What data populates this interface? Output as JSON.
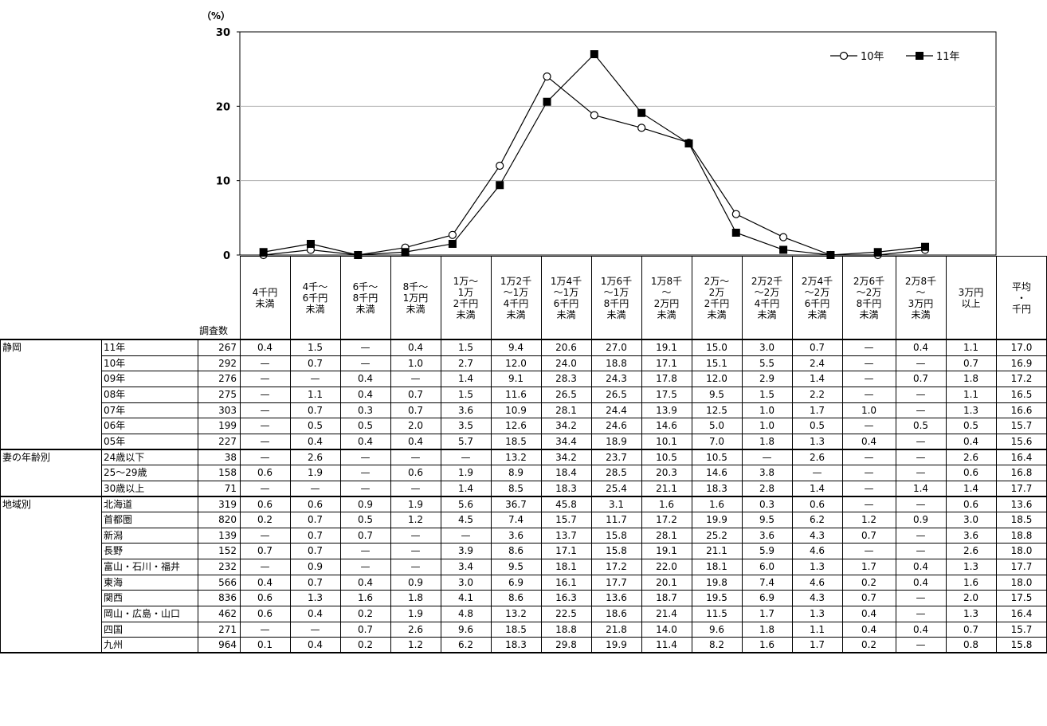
{
  "chart_data": {
    "type": "line",
    "unit_label": "（%）",
    "yticks": [
      0,
      10,
      20,
      30
    ],
    "ylim": [
      0,
      30
    ],
    "grid": true,
    "legend_position": "top-right",
    "categories": [
      "4千円未満",
      "4千～6千円未満",
      "6千～8千円未満",
      "8千～1万円未満",
      "1万～1万2千円未満",
      "1万2千～1万4千円未満",
      "1万4千～1万6千円未満",
      "1万6千～1万8千円未満",
      "1万8千～2万円未満",
      "2万～2万2千円未満",
      "2万2千～2万4千円未満",
      "2万4千～2万6千円未満",
      "2万6千～2万8千円未満",
      "2万8千～3万円未満",
      "3万円以上"
    ],
    "series": [
      {
        "name": "10年",
        "marker": "open-circle",
        "values": [
          0,
          0.7,
          0,
          1.0,
          2.7,
          12.0,
          24.0,
          18.8,
          17.1,
          15.1,
          5.5,
          2.4,
          0,
          0,
          0.7
        ]
      },
      {
        "name": "11年",
        "marker": "filled-square",
        "values": [
          0.4,
          1.5,
          0,
          0.4,
          1.5,
          9.4,
          20.6,
          27.0,
          19.1,
          15.0,
          3.0,
          0.7,
          0,
          0.4,
          1.1
        ]
      }
    ]
  },
  "table": {
    "count_header": "調査数",
    "col_headers": [
      [
        "4千円",
        "未満"
      ],
      [
        "4千～",
        "6千円",
        "未満"
      ],
      [
        "6千～",
        "8千円",
        "未満"
      ],
      [
        "8千～",
        "1万円",
        "未満"
      ],
      [
        "1万～",
        "1万",
        "2千円",
        "未満"
      ],
      [
        "1万2千",
        "～1万",
        "4千円",
        "未満"
      ],
      [
        "1万4千",
        "～1万",
        "6千円",
        "未満"
      ],
      [
        "1万6千",
        "～1万",
        "8千円",
        "未満"
      ],
      [
        "1万8千",
        "～",
        "2万円",
        "未満"
      ],
      [
        "2万～",
        "2万",
        "2千円",
        "未満"
      ],
      [
        "2万2千",
        "～2万",
        "4千円",
        "未満"
      ],
      [
        "2万4千",
        "～2万",
        "6千円",
        "未満"
      ],
      [
        "2万6千",
        "～2万",
        "8千円",
        "未満"
      ],
      [
        "2万8千",
        "～",
        "3万円",
        "未満"
      ],
      [
        "3万円",
        "以上"
      ],
      [
        "平均",
        "・",
        "千円"
      ]
    ],
    "groups": [
      {
        "name": "静岡",
        "rows": [
          {
            "label": "11年",
            "count": "267",
            "vals": [
              "0.4",
              "1.5",
              "—",
              "0.4",
              "1.5",
              "9.4",
              "20.6",
              "27.0",
              "19.1",
              "15.0",
              "3.0",
              "0.7",
              "—",
              "0.4",
              "1.1",
              "17.0"
            ]
          },
          {
            "label": "10年",
            "count": "292",
            "vals": [
              "—",
              "0.7",
              "—",
              "1.0",
              "2.7",
              "12.0",
              "24.0",
              "18.8",
              "17.1",
              "15.1",
              "5.5",
              "2.4",
              "—",
              "—",
              "0.7",
              "16.9"
            ]
          },
          {
            "label": "09年",
            "count": "276",
            "vals": [
              "—",
              "—",
              "0.4",
              "—",
              "1.4",
              "9.1",
              "28.3",
              "24.3",
              "17.8",
              "12.0",
              "2.9",
              "1.4",
              "—",
              "0.7",
              "1.8",
              "17.2"
            ]
          },
          {
            "label": "08年",
            "count": "275",
            "vals": [
              "—",
              "1.1",
              "0.4",
              "0.7",
              "1.5",
              "11.6",
              "26.5",
              "26.5",
              "17.5",
              "9.5",
              "1.5",
              "2.2",
              "—",
              "—",
              "1.1",
              "16.5"
            ]
          },
          {
            "label": "07年",
            "count": "303",
            "vals": [
              "—",
              "0.7",
              "0.3",
              "0.7",
              "3.6",
              "10.9",
              "28.1",
              "24.4",
              "13.9",
              "12.5",
              "1.0",
              "1.7",
              "1.0",
              "—",
              "1.3",
              "16.6"
            ]
          },
          {
            "label": "06年",
            "count": "199",
            "vals": [
              "—",
              "0.5",
              "0.5",
              "2.0",
              "3.5",
              "12.6",
              "34.2",
              "24.6",
              "14.6",
              "5.0",
              "1.0",
              "0.5",
              "—",
              "0.5",
              "0.5",
              "15.7"
            ]
          },
          {
            "label": "05年",
            "count": "227",
            "vals": [
              "—",
              "0.4",
              "0.4",
              "0.4",
              "5.7",
              "18.5",
              "34.4",
              "18.9",
              "10.1",
              "7.0",
              "1.8",
              "1.3",
              "0.4",
              "—",
              "0.4",
              "15.6"
            ]
          }
        ]
      },
      {
        "name": "妻の年齢別",
        "rows": [
          {
            "label": "24歳以下",
            "count": "38",
            "vals": [
              "—",
              "2.6",
              "—",
              "—",
              "—",
              "13.2",
              "34.2",
              "23.7",
              "10.5",
              "10.5",
              "—",
              "2.6",
              "—",
              "—",
              "2.6",
              "16.4"
            ]
          },
          {
            "label": "25～29歳",
            "count": "158",
            "vals": [
              "0.6",
              "1.9",
              "—",
              "0.6",
              "1.9",
              "8.9",
              "18.4",
              "28.5",
              "20.3",
              "14.6",
              "3.8",
              "—",
              "—",
              "—",
              "0.6",
              "16.8"
            ]
          },
          {
            "label": "30歳以上",
            "count": "71",
            "vals": [
              "—",
              "—",
              "—",
              "—",
              "1.4",
              "8.5",
              "18.3",
              "25.4",
              "21.1",
              "18.3",
              "2.8",
              "1.4",
              "—",
              "1.4",
              "1.4",
              "17.7"
            ]
          }
        ]
      },
      {
        "name": "地域別",
        "rows": [
          {
            "label": "北海道",
            "count": "319",
            "vals": [
              "0.6",
              "0.6",
              "0.9",
              "1.9",
              "5.6",
              "36.7",
              "45.8",
              "3.1",
              "1.6",
              "1.6",
              "0.3",
              "0.6",
              "—",
              "—",
              "0.6",
              "13.6"
            ]
          },
          {
            "label": "首都圏",
            "count": "820",
            "vals": [
              "0.2",
              "0.7",
              "0.5",
              "1.2",
              "4.5",
              "7.4",
              "15.7",
              "11.7",
              "17.2",
              "19.9",
              "9.5",
              "6.2",
              "1.2",
              "0.9",
              "3.0",
              "18.5"
            ]
          },
          {
            "label": "新潟",
            "count": "139",
            "vals": [
              "—",
              "0.7",
              "0.7",
              "—",
              "—",
              "3.6",
              "13.7",
              "15.8",
              "28.1",
              "25.2",
              "3.6",
              "4.3",
              "0.7",
              "—",
              "3.6",
              "18.8"
            ]
          },
          {
            "label": "長野",
            "count": "152",
            "vals": [
              "0.7",
              "0.7",
              "—",
              "—",
              "3.9",
              "8.6",
              "17.1",
              "15.8",
              "19.1",
              "21.1",
              "5.9",
              "4.6",
              "—",
              "—",
              "2.6",
              "18.0"
            ]
          },
          {
            "label": "富山・石川・福井",
            "count": "232",
            "vals": [
              "—",
              "0.9",
              "—",
              "—",
              "3.4",
              "9.5",
              "18.1",
              "17.2",
              "22.0",
              "18.1",
              "6.0",
              "1.3",
              "1.7",
              "0.4",
              "1.3",
              "17.7"
            ]
          },
          {
            "label": "東海",
            "count": "566",
            "vals": [
              "0.4",
              "0.7",
              "0.4",
              "0.9",
              "3.0",
              "6.9",
              "16.1",
              "17.7",
              "20.1",
              "19.8",
              "7.4",
              "4.6",
              "0.2",
              "0.4",
              "1.6",
              "18.0"
            ]
          },
          {
            "label": "関西",
            "count": "836",
            "vals": [
              "0.6",
              "1.3",
              "1.6",
              "1.8",
              "4.1",
              "8.6",
              "16.3",
              "13.6",
              "18.7",
              "19.5",
              "6.9",
              "4.3",
              "0.7",
              "—",
              "2.0",
              "17.5"
            ]
          },
          {
            "label": "岡山・広島・山口",
            "count": "462",
            "vals": [
              "0.6",
              "0.4",
              "0.2",
              "1.9",
              "4.8",
              "13.2",
              "22.5",
              "18.6",
              "21.4",
              "11.5",
              "1.7",
              "1.3",
              "0.4",
              "—",
              "1.3",
              "16.4"
            ]
          },
          {
            "label": "四国",
            "count": "271",
            "vals": [
              "—",
              "—",
              "0.7",
              "2.6",
              "9.6",
              "18.5",
              "18.8",
              "21.8",
              "14.0",
              "9.6",
              "1.8",
              "1.1",
              "0.4",
              "0.4",
              "0.7",
              "15.7"
            ]
          },
          {
            "label": "九州",
            "count": "964",
            "vals": [
              "0.1",
              "0.4",
              "0.2",
              "1.2",
              "6.2",
              "18.3",
              "29.8",
              "19.9",
              "11.4",
              "8.2",
              "1.6",
              "1.7",
              "0.2",
              "—",
              "0.8",
              "15.8"
            ]
          }
        ]
      }
    ]
  }
}
